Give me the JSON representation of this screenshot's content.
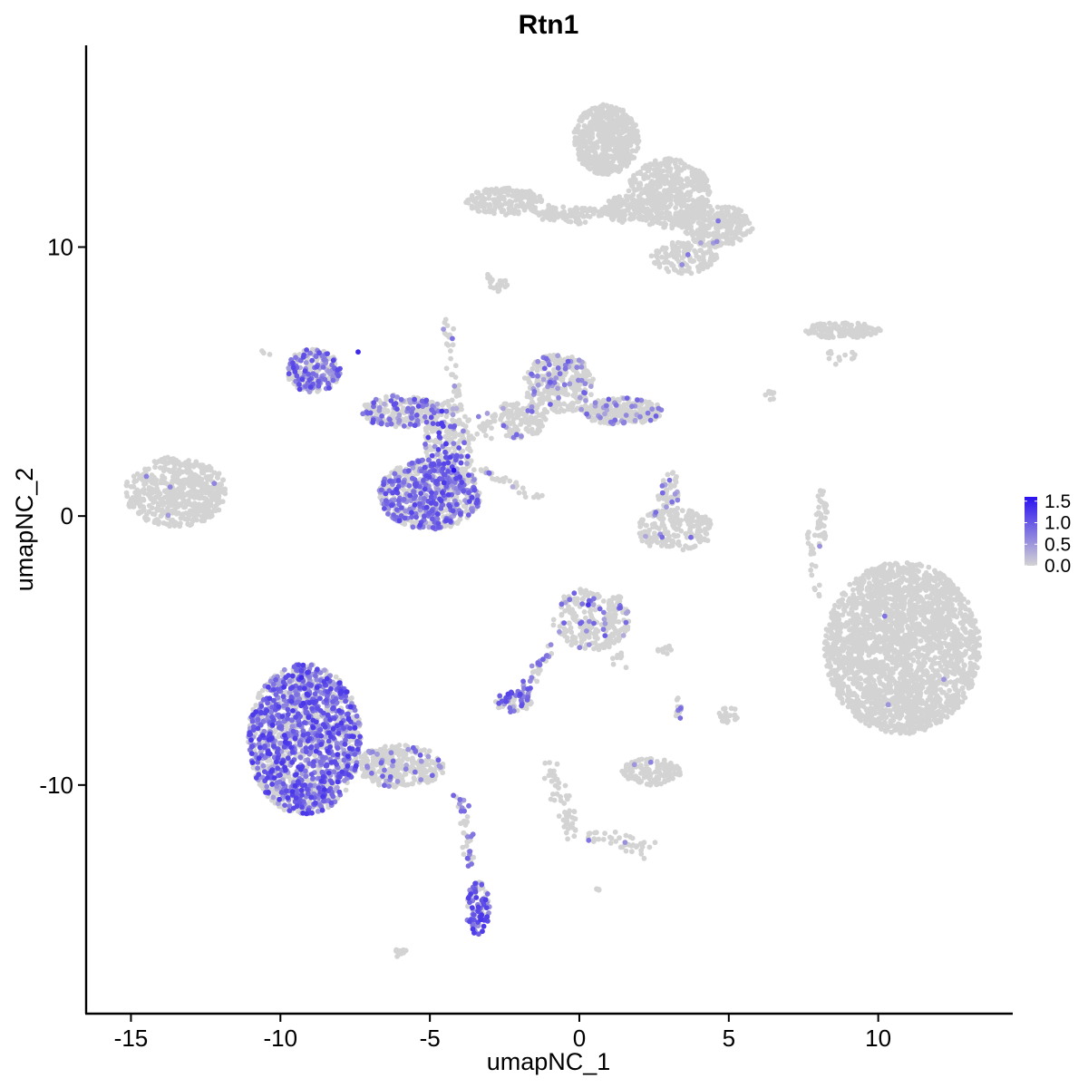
{
  "chart_data": {
    "type": "scatter",
    "title": "Rtn1",
    "xlabel": "umapNC_1",
    "ylabel": "umapNC_2",
    "xlim": [
      -16.5,
      14.5
    ],
    "ylim": [
      -18.5,
      17.5
    ],
    "x_ticks": [
      -15,
      -10,
      -5,
      0,
      5,
      10
    ],
    "x_tick_labels": [
      "-15",
      "-10",
      "-5",
      "0",
      "5",
      "10"
    ],
    "y_ticks": [
      -10,
      0,
      10
    ],
    "y_tick_labels": [
      "-10",
      "0",
      "10"
    ],
    "grid": false,
    "colors": {
      "low": "#d3d3d3",
      "high": "#2a12f0",
      "background": "#ffffff",
      "axis": "#000000"
    },
    "legend": {
      "placement": "right",
      "type": "colorbar",
      "min": 0.0,
      "max": 1.6,
      "ticks": [
        0.0,
        0.5,
        1.0,
        1.5
      ],
      "tick_labels": [
        "0.0",
        "0.5",
        "1.0",
        "1.5"
      ]
    },
    "clusters": [
      {
        "id": "c1",
        "cx": 0.9,
        "cy": 14.0,
        "rx": 1.1,
        "ry": 1.3,
        "n": 600,
        "expr_frac": 0.0,
        "expr_max": 0.0
      },
      {
        "id": "c2",
        "cx": 3.0,
        "cy": 12.0,
        "rx": 1.4,
        "ry": 1.3,
        "n": 500,
        "expr_frac": 0.0,
        "expr_max": 0.0
      },
      {
        "id": "c3",
        "cx": 4.6,
        "cy": 10.8,
        "rx": 1.2,
        "ry": 0.8,
        "n": 280,
        "expr_frac": 0.01,
        "expr_max": 0.8
      },
      {
        "id": "c4",
        "cx": 1.6,
        "cy": 11.4,
        "rx": 0.8,
        "ry": 0.5,
        "n": 120,
        "expr_frac": 0.0,
        "expr_max": 0.0
      },
      {
        "id": "c5",
        "cx": -2.5,
        "cy": 11.7,
        "rx": 1.3,
        "ry": 0.5,
        "n": 180,
        "expr_frac": 0.01,
        "expr_max": 0.7
      },
      {
        "id": "c6",
        "cx": -0.3,
        "cy": 11.3,
        "rx": 1.3,
        "ry": 0.2,
        "n": 80,
        "expr_frac": 0.0,
        "expr_max": 0.0
      },
      {
        "id": "c7",
        "cx": 3.5,
        "cy": 9.6,
        "rx": 1.1,
        "ry": 0.6,
        "n": 120,
        "expr_frac": 0.02,
        "expr_max": 0.8
      },
      {
        "id": "c8",
        "cx": -2.7,
        "cy": 8.6,
        "rx": 0.3,
        "ry": 0.3,
        "n": 14,
        "expr_frac": 0.0,
        "expr_max": 0.0
      },
      {
        "id": "c9",
        "cx": 8.8,
        "cy": 6.9,
        "rx": 1.3,
        "ry": 0.3,
        "n": 140,
        "expr_frac": 0.0,
        "expr_max": 0.0
      },
      {
        "id": "c10",
        "cx": -13.5,
        "cy": 0.9,
        "rx": 1.7,
        "ry": 1.3,
        "n": 500,
        "expr_frac": 0.01,
        "expr_max": 0.8
      },
      {
        "id": "c11",
        "cx": -8.9,
        "cy": 5.4,
        "rx": 0.9,
        "ry": 0.8,
        "n": 230,
        "expr_frac": 0.45,
        "expr_max": 1.2
      },
      {
        "id": "c12",
        "cx": -6.0,
        "cy": 3.9,
        "rx": 1.3,
        "ry": 0.6,
        "n": 220,
        "expr_frac": 0.3,
        "expr_max": 1.1
      },
      {
        "id": "c13",
        "cx": -4.4,
        "cy": 2.6,
        "rx": 0.8,
        "ry": 1.8,
        "n": 260,
        "expr_frac": 0.2,
        "expr_max": 1.3
      },
      {
        "id": "c14",
        "cx": -5.0,
        "cy": 0.8,
        "rx": 1.7,
        "ry": 1.3,
        "n": 650,
        "expr_frac": 0.5,
        "expr_max": 1.2
      },
      {
        "id": "c15",
        "cx": -0.7,
        "cy": 4.9,
        "rx": 1.2,
        "ry": 1.1,
        "n": 300,
        "expr_frac": 0.14,
        "expr_max": 1.0
      },
      {
        "id": "c16",
        "cx": 1.4,
        "cy": 3.9,
        "rx": 1.4,
        "ry": 0.5,
        "n": 240,
        "expr_frac": 0.16,
        "expr_max": 1.0
      },
      {
        "id": "c17",
        "cx": -2.0,
        "cy": 3.6,
        "rx": 0.9,
        "ry": 0.7,
        "n": 120,
        "expr_frac": 0.08,
        "expr_max": 0.9
      },
      {
        "id": "c18",
        "cx": 3.2,
        "cy": -0.5,
        "rx": 1.3,
        "ry": 0.8,
        "n": 200,
        "expr_frac": 0.03,
        "expr_max": 0.9
      },
      {
        "id": "c19",
        "cx": 3.0,
        "cy": 0.9,
        "rx": 0.4,
        "ry": 0.8,
        "n": 50,
        "expr_frac": 0.1,
        "expr_max": 0.9
      },
      {
        "id": "c20",
        "cx": 10.8,
        "cy": -4.9,
        "rx": 2.6,
        "ry": 3.2,
        "n": 2400,
        "expr_frac": 0.003,
        "expr_max": 0.9
      },
      {
        "id": "c21",
        "cx": 8.1,
        "cy": -0.1,
        "rx": 0.2,
        "ry": 1.1,
        "n": 45,
        "expr_frac": 0.02,
        "expr_max": 0.7
      },
      {
        "id": "c22",
        "cx": 0.4,
        "cy": -3.8,
        "rx": 1.3,
        "ry": 1.2,
        "n": 240,
        "expr_frac": 0.15,
        "expr_max": 1.0
      },
      {
        "id": "c23",
        "cx": -2.2,
        "cy": -6.9,
        "rx": 0.6,
        "ry": 0.4,
        "n": 60,
        "expr_frac": 0.5,
        "expr_max": 1.2
      },
      {
        "id": "c24",
        "cx": -9.2,
        "cy": -8.3,
        "rx": 1.9,
        "ry": 2.8,
        "n": 1600,
        "expr_frac": 0.55,
        "expr_max": 1.3
      },
      {
        "id": "c25",
        "cx": -6.0,
        "cy": -9.3,
        "rx": 1.5,
        "ry": 0.8,
        "n": 300,
        "expr_frac": 0.12,
        "expr_max": 1.0
      },
      {
        "id": "c26",
        "cx": 2.4,
        "cy": -9.5,
        "rx": 1.0,
        "ry": 0.5,
        "n": 140,
        "expr_frac": 0.01,
        "expr_max": 0.7
      },
      {
        "id": "c27",
        "cx": 5.0,
        "cy": -7.4,
        "rx": 0.35,
        "ry": 0.3,
        "n": 20,
        "expr_frac": 0.0,
        "expr_max": 0.0
      },
      {
        "id": "c28",
        "cx": -3.4,
        "cy": -14.6,
        "rx": 0.4,
        "ry": 1.0,
        "n": 90,
        "expr_frac": 0.6,
        "expr_max": 1.3
      },
      {
        "id": "c29",
        "cx": -6.0,
        "cy": -16.2,
        "rx": 0.2,
        "ry": 0.1,
        "n": 8,
        "expr_frac": 0.0,
        "expr_max": 0.0
      }
    ],
    "trails": [
      {
        "id": "t1",
        "from": [
          -1.2,
          11.2
        ],
        "to": [
          0.2,
          11.0
        ],
        "n": 30,
        "spread": 0.15,
        "expr_frac": 0.0,
        "expr_max": 0.0
      },
      {
        "id": "t2",
        "from": [
          -4.5,
          7.5
        ],
        "to": [
          -4.0,
          3.8
        ],
        "n": 35,
        "spread": 0.1,
        "expr_frac": 0.1,
        "expr_max": 0.9
      },
      {
        "id": "t3",
        "from": [
          -3.8,
          2.0
        ],
        "to": [
          -1.2,
          0.6
        ],
        "n": 40,
        "spread": 0.08,
        "expr_frac": 0.25,
        "expr_max": 1.0
      },
      {
        "id": "t4",
        "from": [
          -3.6,
          3.2
        ],
        "to": [
          -1.8,
          3.8
        ],
        "n": 40,
        "spread": 0.25,
        "expr_frac": 0.1,
        "expr_max": 0.9
      },
      {
        "id": "t5",
        "from": [
          -0.9,
          -4.7
        ],
        "to": [
          -2.0,
          -6.8
        ],
        "n": 40,
        "spread": 0.1,
        "expr_frac": 0.55,
        "expr_max": 1.1
      },
      {
        "id": "t6",
        "from": [
          1.0,
          -4.5
        ],
        "to": [
          1.3,
          -5.6
        ],
        "n": 20,
        "spread": 0.15,
        "expr_frac": 0.2,
        "expr_max": 1.0
      },
      {
        "id": "t7",
        "from": [
          -4.0,
          -10.4
        ],
        "to": [
          -3.6,
          -13.0
        ],
        "n": 40,
        "spread": 0.1,
        "expr_frac": 0.35,
        "expr_max": 1.0
      },
      {
        "id": "t8",
        "from": [
          -1.0,
          -9.3
        ],
        "to": [
          -0.2,
          -11.9
        ],
        "n": 55,
        "spread": 0.15,
        "expr_frac": 0.0,
        "expr_max": 0.0
      },
      {
        "id": "t9",
        "from": [
          0.2,
          -11.8
        ],
        "to": [
          2.4,
          -12.4
        ],
        "n": 40,
        "spread": 0.15,
        "expr_frac": 0.05,
        "expr_max": 0.8
      },
      {
        "id": "t10",
        "from": [
          7.7,
          -0.6
        ],
        "to": [
          7.9,
          -3.0
        ],
        "n": 20,
        "spread": 0.08,
        "expr_frac": 0.0,
        "expr_max": 0.0
      },
      {
        "id": "t11",
        "from": [
          3.3,
          -6.8
        ],
        "to": [
          3.3,
          -7.6
        ],
        "n": 12,
        "spread": 0.08,
        "expr_frac": 0.3,
        "expr_max": 0.9
      },
      {
        "id": "t12",
        "from": [
          2.5,
          -5.0
        ],
        "to": [
          3.0,
          -4.9
        ],
        "n": 10,
        "spread": 0.08,
        "expr_frac": 0.1,
        "expr_max": 0.7
      },
      {
        "id": "t13",
        "from": [
          8.3,
          5.8
        ],
        "to": [
          9.3,
          6.1
        ],
        "n": 12,
        "spread": 0.15,
        "expr_frac": 0.0,
        "expr_max": 0.0
      },
      {
        "id": "t14",
        "from": [
          -10.6,
          6.1
        ],
        "to": [
          -10.4,
          6.0
        ],
        "n": 3,
        "spread": 0.05,
        "expr_frac": 0.0,
        "expr_max": 0.0
      },
      {
        "id": "t15",
        "from": [
          -3.1,
          9.0
        ],
        "to": [
          -2.7,
          8.4
        ],
        "n": 10,
        "spread": 0.1,
        "expr_frac": 0.0,
        "expr_max": 0.0
      },
      {
        "id": "t16",
        "from": [
          6.3,
          4.7
        ],
        "to": [
          6.6,
          4.3
        ],
        "n": 8,
        "spread": 0.08,
        "expr_frac": 0.0,
        "expr_max": 0.0
      },
      {
        "id": "t17",
        "from": [
          0.6,
          -13.8
        ],
        "to": [
          0.7,
          -14.0
        ],
        "n": 5,
        "spread": 0.05,
        "expr_frac": 0.0,
        "expr_max": 0.0
      },
      {
        "id": "t18",
        "from": [
          -6.1,
          -16.3
        ],
        "to": [
          -5.8,
          -16.1
        ],
        "n": 8,
        "spread": 0.05,
        "expr_frac": 0.0,
        "expr_max": 0.0
      }
    ],
    "highlight_points": [
      {
        "x": -4.2,
        "y": 1.7,
        "value": 1.6
      },
      {
        "x": -7.4,
        "y": 6.1,
        "value": 1.4
      },
      {
        "x": -9.3,
        "y": -6.0,
        "value": 1.4
      },
      {
        "x": -3.3,
        "y": -15.0,
        "value": 1.3
      },
      {
        "x": 0.3,
        "y": -3.3,
        "value": 1.3
      },
      {
        "x": -4.6,
        "y": 3.9,
        "value": 1.3
      }
    ]
  }
}
